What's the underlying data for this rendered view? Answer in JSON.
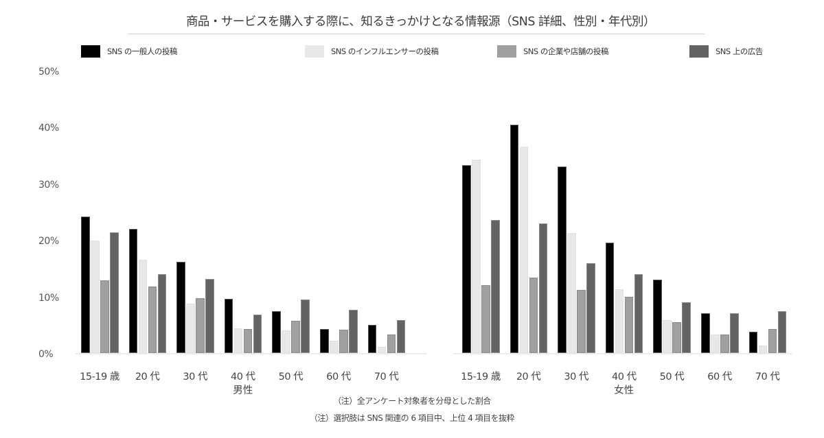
{
  "chart_data": {
    "type": "bar",
    "title": "商品・サービスを購入する際に、知るきっかけとなる情報源（SNS 詳細、性別・年代別）",
    "xlabel": "",
    "ylabel": "",
    "ylim": [
      0,
      50
    ],
    "yticks": [
      "0%",
      "10%",
      "20%",
      "30%",
      "40%",
      "50%"
    ],
    "grid": false,
    "legend_position": "top",
    "categories": [
      "15-19 歳",
      "20 代",
      "30 代",
      "40 代",
      "50 代",
      "60 代",
      "70 代"
    ],
    "groups": [
      {
        "name": "男性",
        "series": [
          {
            "name": "SNS の一般人の投稿",
            "color": "#000000",
            "values": [
              24.1,
              21.9,
              16.1,
              9.6,
              7.4,
              4.2,
              5.0
            ]
          },
          {
            "name": "SNS のインフルエンサーの投稿",
            "color": "#e8e8e8",
            "values": [
              19.9,
              16.5,
              8.7,
              4.4,
              4.0,
              2.2,
              1.1
            ]
          },
          {
            "name": "SNS の企業や店舗の投稿",
            "color": "#a0a0a0",
            "values": [
              12.8,
              11.8,
              9.7,
              4.2,
              5.7,
              4.1,
              3.3
            ]
          },
          {
            "name": "SNS 上の広告",
            "color": "#636363",
            "values": [
              21.3,
              14.0,
              13.1,
              6.8,
              9.5,
              7.6,
              5.8
            ]
          }
        ]
      },
      {
        "name": "女性",
        "series": [
          {
            "name": "SNS の一般人の投稿",
            "color": "#000000",
            "values": [
              33.2,
              40.4,
              33.0,
              19.5,
              13.0,
              7.0,
              3.8
            ]
          },
          {
            "name": "SNS のインフルエンサーの投稿",
            "color": "#e8e8e8",
            "values": [
              34.2,
              36.5,
              21.2,
              11.3,
              5.8,
              3.3,
              1.3
            ]
          },
          {
            "name": "SNS の企業や店舗の投稿",
            "color": "#a0a0a0",
            "values": [
              12.0,
              13.3,
              11.2,
              9.9,
              5.5,
              3.3,
              4.2
            ]
          },
          {
            "name": "SNS 上の広告",
            "color": "#636363",
            "values": [
              23.5,
              22.9,
              15.9,
              13.9,
              9.0,
              7.0,
              7.4
            ]
          }
        ]
      }
    ],
    "notes": [
      "（注）全アンケート対象者を分母とした割合",
      "（注）選択肢は SNS 関連の 6 項目中、上位 4 項目を抜粋"
    ]
  },
  "legend": [
    {
      "label": "SNS の一般人の投稿",
      "color": "#000000"
    },
    {
      "label": "SNS のインフルエンサーの投稿",
      "color": "#e8e8e8"
    },
    {
      "label": "SNS の企業や店舗の投稿",
      "color": "#a0a0a0"
    },
    {
      "label": "SNS 上の広告",
      "color": "#636363"
    }
  ],
  "title": "商品・サービスを購入する際に、知るきっかけとなる情報源（SNS 詳細、性別・年代別）",
  "notes": {
    "note1": "（注）全アンケート対象者を分母とした割合",
    "note2": "（注）選択肢は SNS 関連の 6 項目中、上位 4 項目を抜粋"
  }
}
